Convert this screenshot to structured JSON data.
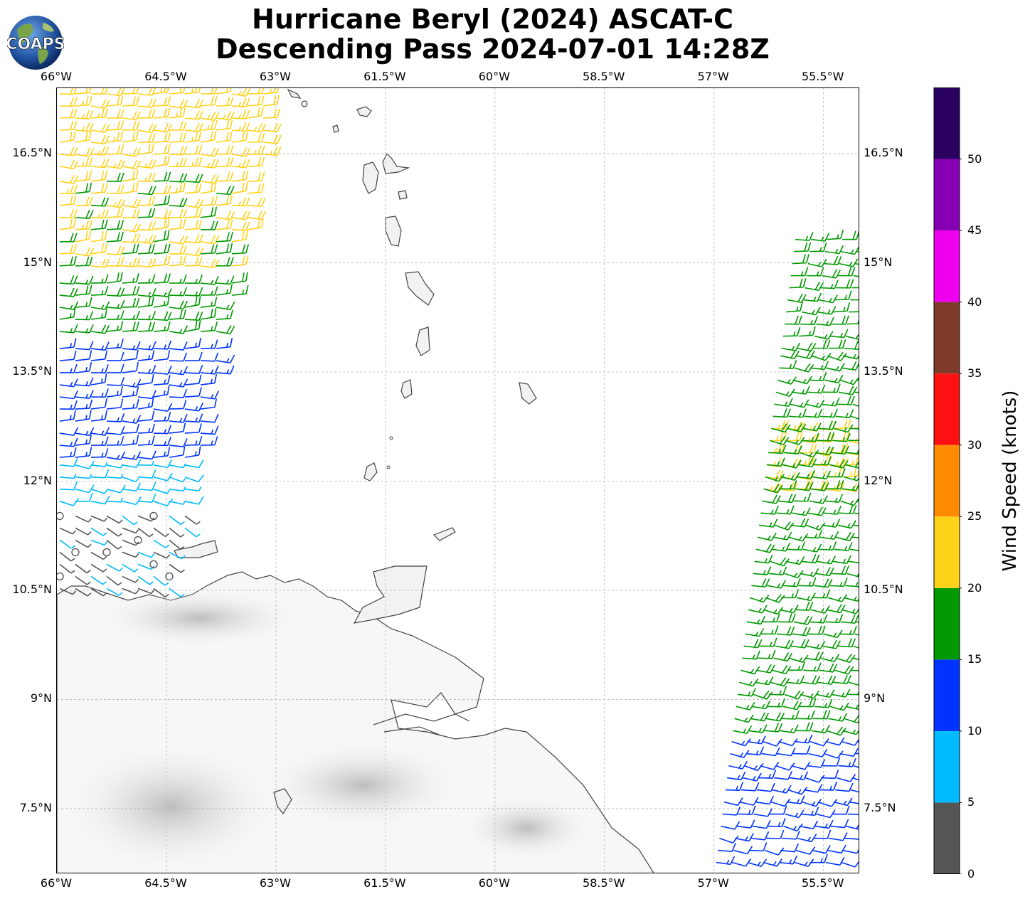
{
  "title": {
    "line1": "Hurricane Beryl (2024) ASCAT-C",
    "line2": "Descending Pass 2024-07-01 14:28Z"
  },
  "logo": {
    "text": "COAPS"
  },
  "map": {
    "lon_ticks": [
      "66°W",
      "64.5°W",
      "63°W",
      "61.5°W",
      "60°W",
      "58.5°W",
      "57°W",
      "55.5°W"
    ],
    "lat_ticks": [
      "16.5°N",
      "15°N",
      "13.5°N",
      "12°N",
      "10.5°N",
      "9°N",
      "7.5°N"
    ],
    "lon_range": [
      -66,
      -55.0
    ],
    "lat_range": [
      6.6,
      17.4
    ],
    "gridlines": true
  },
  "colorbar": {
    "title": "Wind Speed (knots)",
    "tick_labels": [
      "0",
      "5",
      "10",
      "15",
      "20",
      "25",
      "30",
      "35",
      "40",
      "45",
      "50"
    ],
    "bins": [
      {
        "min": 0,
        "max": 5,
        "color": "#555555"
      },
      {
        "min": 5,
        "max": 10,
        "color": "#00bbff"
      },
      {
        "min": 10,
        "max": 15,
        "color": "#0033ff"
      },
      {
        "min": 15,
        "max": 20,
        "color": "#009900"
      },
      {
        "min": 20,
        "max": 25,
        "color": "#ffd21a"
      },
      {
        "min": 25,
        "max": 30,
        "color": "#ff8c00"
      },
      {
        "min": 30,
        "max": 35,
        "color": "#ff1111"
      },
      {
        "min": 35,
        "max": 40,
        "color": "#7f3a2a"
      },
      {
        "min": 40,
        "max": 45,
        "color": "#ee00ee"
      },
      {
        "min": 45,
        "max": 50,
        "color": "#8800b3"
      },
      {
        "min": 50,
        "max": 55,
        "color": "#2a0060"
      }
    ]
  },
  "wind_swaths": [
    {
      "side": "west",
      "lat_min": 16.2,
      "lat_max": 17.4,
      "speed_kt": 22,
      "dir_deg": 90
    },
    {
      "side": "west",
      "lat_min": 14.8,
      "lat_max": 16.2,
      "speed_kt": 21,
      "dir_deg": 90
    },
    {
      "side": "west",
      "lat_min": 13.9,
      "lat_max": 14.8,
      "speed_kt": 17,
      "dir_deg": 90
    },
    {
      "side": "west",
      "lat_min": 12.3,
      "lat_max": 13.9,
      "speed_kt": 13,
      "dir_deg": 90
    },
    {
      "side": "west",
      "lat_min": 11.6,
      "lat_max": 12.3,
      "speed_kt": 8,
      "dir_deg": 100
    },
    {
      "side": "west",
      "lat_min": 10.5,
      "lat_max": 11.6,
      "speed_kt": 4,
      "dir_deg": 120
    },
    {
      "side": "east",
      "lat_min": 13.8,
      "lat_max": 15.4,
      "speed_kt": 17,
      "dir_deg": 95
    },
    {
      "side": "east",
      "lat_min": 11.8,
      "lat_max": 12.8,
      "speed_kt": 22,
      "dir_deg": 95
    },
    {
      "side": "east",
      "lat_min": 8.5,
      "lat_max": 13.8,
      "speed_kt": 17,
      "dir_deg": 100
    },
    {
      "side": "east",
      "lat_min": 6.6,
      "lat_max": 8.5,
      "speed_kt": 12,
      "dir_deg": 100
    }
  ]
}
